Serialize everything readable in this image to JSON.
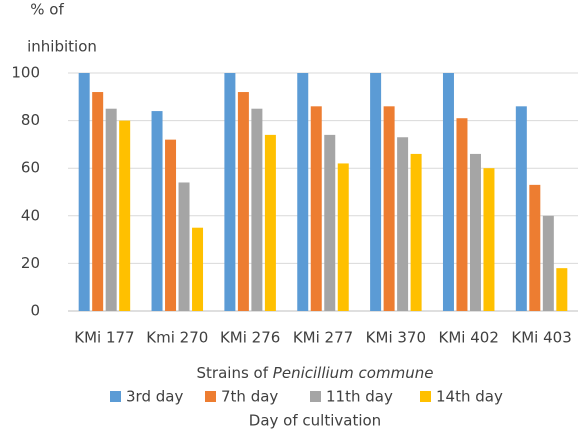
{
  "chart_data": {
    "type": "bar",
    "ylabel": [
      "% of",
      "inhibition"
    ],
    "xlabel": {
      "text": "Strains of",
      "italic": "Penicillium commune"
    },
    "legend_title": "Day of cultivation",
    "legend": "bottom",
    "grid": true,
    "categories": [
      "KMi 177",
      "Kmi 270",
      "KMi 276",
      "KMi 277",
      "KMi 370",
      "KMi 402",
      "KMi 403"
    ],
    "series": [
      {
        "name": "3rd day",
        "color": "#5b9bd5",
        "values": [
          100,
          84,
          100,
          100,
          100,
          100,
          86
        ]
      },
      {
        "name": "7th day",
        "color": "#ed7d31",
        "values": [
          92,
          72,
          92,
          86,
          86,
          81,
          53
        ]
      },
      {
        "name": "11th day",
        "color": "#a5a5a5",
        "values": [
          85,
          54,
          85,
          74,
          73,
          66,
          40
        ]
      },
      {
        "name": "14th day",
        "color": "#ffc000",
        "values": [
          80,
          35,
          74,
          62,
          66,
          60,
          18
        ]
      }
    ],
    "ylim": [
      0,
      100
    ],
    "yticks": [
      0,
      20,
      40,
      60,
      80,
      100
    ]
  }
}
